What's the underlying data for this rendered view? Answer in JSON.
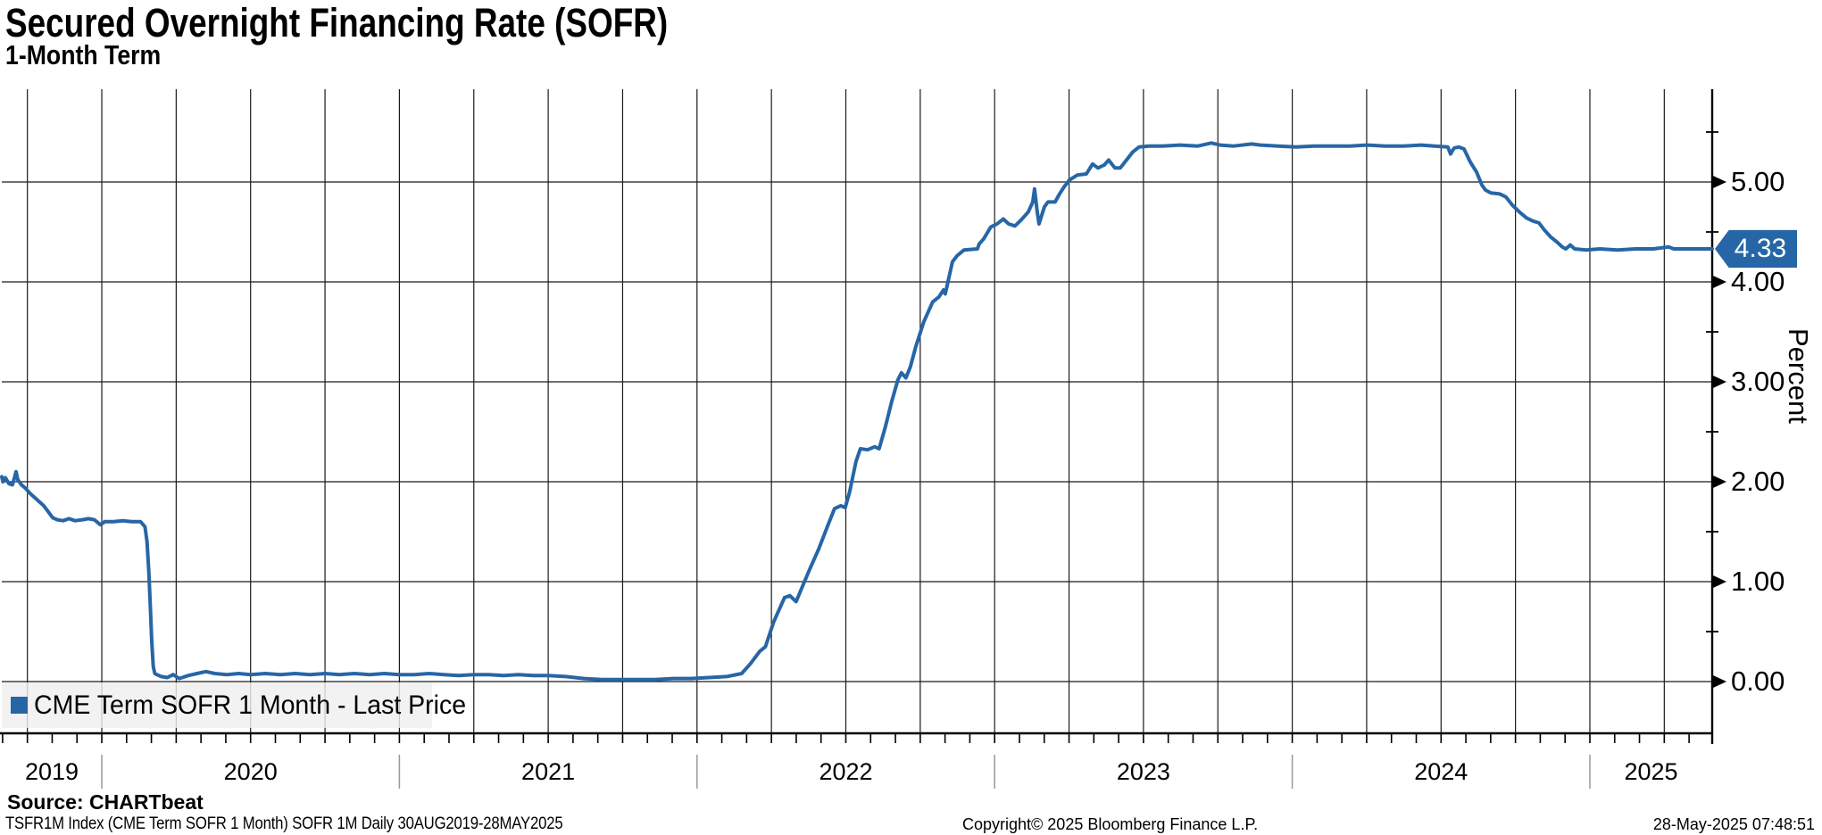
{
  "header": {
    "title": "Secured Overnight Financing Rate (SOFR)",
    "subtitle": "1-Month Term"
  },
  "legend": {
    "label": "CME Term SOFR 1 Month - Last Price"
  },
  "badge": {
    "value": "4.33"
  },
  "footer": {
    "source": "Source: CHARTbeat",
    "meta": "TSFR1M Index (CME Term SOFR 1 Month) SOFR 1M  Daily 30AUG2019-28MAY2025",
    "copyright": "Copyright© 2025 Bloomberg Finance L.P.",
    "timestamp": "28-May-2025 07:48:51"
  },
  "chart_data": {
    "type": "line",
    "title": "Secured Overnight Financing Rate (SOFR)",
    "subtitle": "1-Month Term",
    "series_name": "CME Term SOFR 1 Month - Last Price",
    "ylabel": "Percent",
    "line_color": "#2766A6",
    "grid": true,
    "legend_position": "bottom-left",
    "x_range_years": [
      2019.664,
      2025.411
    ],
    "x_start_label": "30AUG2019",
    "x_end_label": "28MAY2025",
    "ylim": [
      -0.54,
      5.95
    ],
    "last_value": 4.33,
    "y_ticks": [
      {
        "v": 0,
        "label": "0.00"
      },
      {
        "v": 1,
        "label": "1.00"
      },
      {
        "v": 2,
        "label": "2.00"
      },
      {
        "v": 3,
        "label": "3.00"
      },
      {
        "v": 4,
        "label": "4.00"
      },
      {
        "v": 5,
        "label": "5.00"
      }
    ],
    "x_ticks": [
      {
        "year": 2019,
        "label": "2019"
      },
      {
        "year": 2020,
        "label": "2020"
      },
      {
        "year": 2021,
        "label": "2021"
      },
      {
        "year": 2022,
        "label": "2022"
      },
      {
        "year": 2023,
        "label": "2023"
      },
      {
        "year": 2024,
        "label": "2024"
      },
      {
        "year": 2025,
        "label": "2025"
      }
    ],
    "points": [
      [
        2019.664,
        2.05
      ],
      [
        2019.668,
        2.0
      ],
      [
        2019.676,
        2.04
      ],
      [
        2019.688,
        1.98
      ],
      [
        2019.7,
        1.97
      ],
      [
        2019.712,
        2.1
      ],
      [
        2019.718,
        2.02
      ],
      [
        2019.73,
        1.97
      ],
      [
        2019.745,
        1.93
      ],
      [
        2019.76,
        1.88
      ],
      [
        2019.775,
        1.84
      ],
      [
        2019.79,
        1.8
      ],
      [
        2019.805,
        1.76
      ],
      [
        2019.82,
        1.7
      ],
      [
        2019.835,
        1.64
      ],
      [
        2019.85,
        1.62
      ],
      [
        2019.87,
        1.61
      ],
      [
        2019.89,
        1.63
      ],
      [
        2019.91,
        1.61
      ],
      [
        2019.935,
        1.62
      ],
      [
        2019.955,
        1.63
      ],
      [
        2019.975,
        1.62
      ],
      [
        2019.995,
        1.57
      ],
      [
        2020.01,
        1.6
      ],
      [
        2020.04,
        1.6
      ],
      [
        2020.07,
        1.61
      ],
      [
        2020.1,
        1.6
      ],
      [
        2020.13,
        1.6
      ],
      [
        2020.145,
        1.55
      ],
      [
        2020.152,
        1.4
      ],
      [
        2020.158,
        1.1
      ],
      [
        2020.163,
        0.75
      ],
      [
        2020.168,
        0.4
      ],
      [
        2020.173,
        0.15
      ],
      [
        2020.178,
        0.08
      ],
      [
        2020.185,
        0.07
      ],
      [
        2020.2,
        0.05
      ],
      [
        2020.22,
        0.04
      ],
      [
        2020.24,
        0.07
      ],
      [
        2020.26,
        0.03
      ],
      [
        2020.29,
        0.06
      ],
      [
        2020.32,
        0.08
      ],
      [
        2020.35,
        0.1
      ],
      [
        2020.38,
        0.08
      ],
      [
        2020.42,
        0.07
      ],
      [
        2020.46,
        0.08
      ],
      [
        2020.5,
        0.07
      ],
      [
        2020.55,
        0.08
      ],
      [
        2020.6,
        0.07
      ],
      [
        2020.65,
        0.08
      ],
      [
        2020.7,
        0.07
      ],
      [
        2020.75,
        0.08
      ],
      [
        2020.8,
        0.07
      ],
      [
        2020.85,
        0.08
      ],
      [
        2020.9,
        0.07
      ],
      [
        2020.95,
        0.08
      ],
      [
        2021.0,
        0.07
      ],
      [
        2021.05,
        0.07
      ],
      [
        2021.1,
        0.08
      ],
      [
        2021.15,
        0.07
      ],
      [
        2021.2,
        0.06
      ],
      [
        2021.25,
        0.07
      ],
      [
        2021.3,
        0.07
      ],
      [
        2021.35,
        0.06
      ],
      [
        2021.4,
        0.07
      ],
      [
        2021.45,
        0.06
      ],
      [
        2021.5,
        0.06
      ],
      [
        2021.56,
        0.05
      ],
      [
        2021.62,
        0.03
      ],
      [
        2021.68,
        0.02
      ],
      [
        2021.74,
        0.02
      ],
      [
        2021.8,
        0.02
      ],
      [
        2021.86,
        0.02
      ],
      [
        2021.92,
        0.03
      ],
      [
        2021.98,
        0.03
      ],
      [
        2022.04,
        0.04
      ],
      [
        2022.1,
        0.05
      ],
      [
        2022.15,
        0.08
      ],
      [
        2022.18,
        0.18
      ],
      [
        2022.21,
        0.3
      ],
      [
        2022.23,
        0.35
      ],
      [
        2022.258,
        0.6
      ],
      [
        2022.294,
        0.84
      ],
      [
        2022.312,
        0.86
      ],
      [
        2022.333,
        0.8
      ],
      [
        2022.354,
        0.95
      ],
      [
        2022.378,
        1.12
      ],
      [
        2022.408,
        1.32
      ],
      [
        2022.438,
        1.55
      ],
      [
        2022.462,
        1.73
      ],
      [
        2022.483,
        1.76
      ],
      [
        2022.498,
        1.74
      ],
      [
        2022.513,
        1.9
      ],
      [
        2022.534,
        2.2
      ],
      [
        2022.549,
        2.33
      ],
      [
        2022.573,
        2.32
      ],
      [
        2022.597,
        2.35
      ],
      [
        2022.612,
        2.33
      ],
      [
        2022.633,
        2.55
      ],
      [
        2022.654,
        2.8
      ],
      [
        2022.675,
        3.02
      ],
      [
        2022.687,
        3.09
      ],
      [
        2022.702,
        3.04
      ],
      [
        2022.717,
        3.15
      ],
      [
        2022.735,
        3.35
      ],
      [
        2022.762,
        3.6
      ],
      [
        2022.792,
        3.8
      ],
      [
        2022.813,
        3.85
      ],
      [
        2022.828,
        3.92
      ],
      [
        2022.834,
        3.88
      ],
      [
        2022.858,
        4.2
      ],
      [
        2022.873,
        4.26
      ],
      [
        2022.897,
        4.32
      ],
      [
        2022.942,
        4.33
      ],
      [
        2022.948,
        4.38
      ],
      [
        2022.963,
        4.43
      ],
      [
        2022.987,
        4.55
      ],
      [
        2023.008,
        4.58
      ],
      [
        2023.029,
        4.63
      ],
      [
        2023.047,
        4.58
      ],
      [
        2023.068,
        4.56
      ],
      [
        2023.089,
        4.62
      ],
      [
        2023.113,
        4.7
      ],
      [
        2023.128,
        4.8
      ],
      [
        2023.134,
        4.93
      ],
      [
        2023.143,
        4.7
      ],
      [
        2023.149,
        4.58
      ],
      [
        2023.167,
        4.75
      ],
      [
        2023.179,
        4.8
      ],
      [
        2023.203,
        4.8
      ],
      [
        2023.218,
        4.88
      ],
      [
        2023.233,
        4.95
      ],
      [
        2023.251,
        5.02
      ],
      [
        2023.278,
        5.07
      ],
      [
        2023.308,
        5.08
      ],
      [
        2023.329,
        5.18
      ],
      [
        2023.347,
        5.14
      ],
      [
        2023.368,
        5.17
      ],
      [
        2023.383,
        5.22
      ],
      [
        2023.404,
        5.14
      ],
      [
        2023.422,
        5.14
      ],
      [
        2023.443,
        5.22
      ],
      [
        2023.464,
        5.3
      ],
      [
        2023.485,
        5.35
      ],
      [
        2023.518,
        5.36
      ],
      [
        2023.563,
        5.36
      ],
      [
        2023.623,
        5.37
      ],
      [
        2023.683,
        5.36
      ],
      [
        2023.728,
        5.39
      ],
      [
        2023.758,
        5.37
      ],
      [
        2023.803,
        5.36
      ],
      [
        2023.863,
        5.38
      ],
      [
        2023.893,
        5.37
      ],
      [
        2023.953,
        5.36
      ],
      [
        2024.013,
        5.35
      ],
      [
        2024.073,
        5.36
      ],
      [
        2024.133,
        5.36
      ],
      [
        2024.193,
        5.36
      ],
      [
        2024.253,
        5.37
      ],
      [
        2024.313,
        5.36
      ],
      [
        2024.373,
        5.36
      ],
      [
        2024.433,
        5.37
      ],
      [
        2024.478,
        5.36
      ],
      [
        2024.523,
        5.35
      ],
      [
        2024.532,
        5.28
      ],
      [
        2024.544,
        5.34
      ],
      [
        2024.559,
        5.35
      ],
      [
        2024.577,
        5.33
      ],
      [
        2024.598,
        5.2
      ],
      [
        2024.619,
        5.1
      ],
      [
        2024.637,
        4.97
      ],
      [
        2024.649,
        4.92
      ],
      [
        2024.667,
        4.89
      ],
      [
        2024.697,
        4.88
      ],
      [
        2024.718,
        4.85
      ],
      [
        2024.739,
        4.77
      ],
      [
        2024.763,
        4.7
      ],
      [
        2024.787,
        4.64
      ],
      [
        2024.808,
        4.61
      ],
      [
        2024.829,
        4.59
      ],
      [
        2024.847,
        4.52
      ],
      [
        2024.868,
        4.45
      ],
      [
        2024.889,
        4.4
      ],
      [
        2024.907,
        4.35
      ],
      [
        2024.919,
        4.33
      ],
      [
        2024.934,
        4.37
      ],
      [
        2024.949,
        4.33
      ],
      [
        2024.988,
        4.32
      ],
      [
        2025.033,
        4.33
      ],
      [
        2025.093,
        4.32
      ],
      [
        2025.153,
        4.33
      ],
      [
        2025.213,
        4.33
      ],
      [
        2025.264,
        4.35
      ],
      [
        2025.282,
        4.33
      ],
      [
        2025.333,
        4.33
      ],
      [
        2025.378,
        4.33
      ],
      [
        2025.411,
        4.33
      ]
    ]
  }
}
